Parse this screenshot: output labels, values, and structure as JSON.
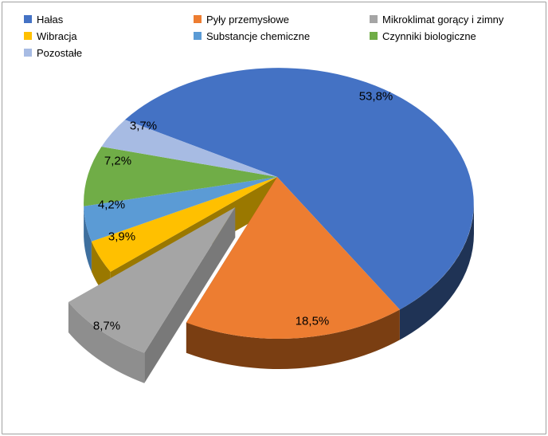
{
  "frame": {
    "background": "#FFFFFF",
    "border_color": "#A0A0A0"
  },
  "chart_data": {
    "type": "pie",
    "variant": "3d-exploded",
    "title": "",
    "unit": "%",
    "legend_position": "top",
    "direction": "clockwise",
    "start_angle_deg": -52,
    "slices": [
      {
        "label": "Hałas",
        "value": 53.8,
        "display": "53,8%",
        "color": "#4472C4",
        "side_color": "#1F3355",
        "exploded": false
      },
      {
        "label": "Pyły przemysłowe",
        "value": 18.5,
        "display": "18,5%",
        "color": "#ED7D31",
        "side_color": "#7A3E12",
        "exploded": false
      },
      {
        "label": "Mikroklimat gorący i zimny",
        "value": 8.7,
        "display": "8,7%",
        "color": "#A5A5A5",
        "side_color": "#8E8E8E",
        "exploded": true
      },
      {
        "label": "Wibracja",
        "value": 3.9,
        "display": "3,9%",
        "color": "#FFC000",
        "side_color": "#9A7800",
        "exploded": false
      },
      {
        "label": "Substancje chemiczne",
        "value": 4.2,
        "display": "4,2%",
        "color": "#5B9BD5",
        "side_color": "#3E6F9E",
        "exploded": false
      },
      {
        "label": "Czynniki biologiczne",
        "value": 7.2,
        "display": "7,2%",
        "color": "#70AD47",
        "side_color": "#4E7A31",
        "exploded": false
      },
      {
        "label": "Pozostałe",
        "value": 3.7,
        "display": "3,7%",
        "color": "#A7BBE3",
        "side_color": "#7E93BC",
        "exploded": false
      }
    ]
  }
}
